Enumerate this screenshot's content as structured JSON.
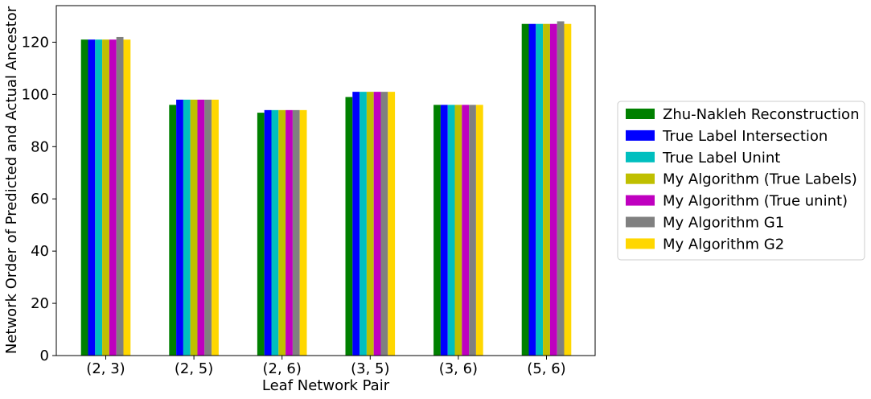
{
  "chart_data": {
    "type": "bar",
    "xlabel": "Leaf Network Pair",
    "ylabel": "Network Order of Predicted and Actual Ancestor",
    "ylim": [
      0,
      134
    ],
    "yticks": [
      "0",
      "20",
      "40",
      "60",
      "80",
      "100",
      "120"
    ],
    "categories": [
      "(2, 3)",
      "(2, 5)",
      "(2, 6)",
      "(3, 5)",
      "(3, 6)",
      "(5, 6)"
    ],
    "legend_position": "center-right, outside plot",
    "grid": false,
    "series": [
      {
        "name": "Zhu-Nakleh Reconstruction",
        "color": "#008000",
        "values": [
          121,
          96,
          93,
          99,
          96,
          127
        ]
      },
      {
        "name": "True Label Intersection",
        "color": "#0000ff",
        "values": [
          121,
          98,
          94,
          101,
          96,
          127
        ]
      },
      {
        "name": "True Label Unint",
        "color": "#00bfbf",
        "values": [
          121,
          98,
          94,
          101,
          96,
          127
        ]
      },
      {
        "name": "My Algorithm (True Labels)",
        "color": "#bfbf00",
        "values": [
          121,
          98,
          94,
          101,
          96,
          127
        ]
      },
      {
        "name": "My Algorithm (True unint)",
        "color": "#bf00bf",
        "values": [
          121,
          98,
          94,
          101,
          96,
          127
        ]
      },
      {
        "name": "My Algorithm G1",
        "color": "#808080",
        "values": [
          122,
          98,
          94,
          101,
          96,
          128
        ]
      },
      {
        "name": "My Algorithm G2",
        "color": "#ffd700",
        "values": [
          121,
          98,
          94,
          101,
          96,
          127
        ]
      }
    ]
  }
}
